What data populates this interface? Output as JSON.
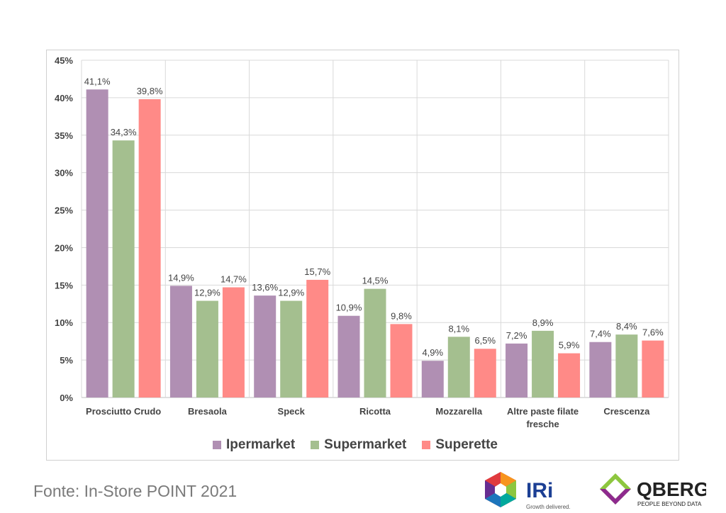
{
  "source_text": "Fonte: In-Store POINT 2021",
  "logos": {
    "iri_text": "IRi",
    "iri_tagline": "Growth delivered.",
    "qberg_text": "QBERG",
    "qberg_tagline": "PEOPLE BEYOND DATA"
  },
  "chart_data": {
    "type": "bar",
    "title": "",
    "xlabel": "",
    "ylabel": "",
    "ylim": [
      0,
      45
    ],
    "yticks": [
      "0%",
      "5%",
      "10%",
      "15%",
      "20%",
      "25%",
      "30%",
      "35%",
      "40%",
      "45%"
    ],
    "grid": true,
    "legend_position": "bottom",
    "categories": [
      [
        "Prosciutto Crudo"
      ],
      [
        "Bresaola"
      ],
      [
        "Speck"
      ],
      [
        "Ricotta"
      ],
      [
        "Mozzarella"
      ],
      [
        "Altre paste filate",
        "fresche"
      ],
      [
        "Crescenza"
      ]
    ],
    "series": [
      {
        "name": "Ipermarket",
        "color": "#b08fb3",
        "values": [
          41.1,
          14.9,
          13.6,
          10.9,
          4.9,
          7.2,
          7.4
        ],
        "labels": [
          "41,1%",
          "14,9%",
          "13,6%",
          "10,9%",
          "4,9%",
          "7,2%",
          "7,4%"
        ]
      },
      {
        "name": "Supermarket",
        "color": "#a4bf8f",
        "values": [
          34.3,
          12.9,
          12.9,
          14.5,
          8.1,
          8.9,
          8.4
        ],
        "labels": [
          "34,3%",
          "12,9%",
          "12,9%",
          "14,5%",
          "8,1%",
          "8,9%",
          "8,4%"
        ]
      },
      {
        "name": "Superette",
        "color": "#ff8a87",
        "values": [
          39.8,
          14.7,
          15.7,
          9.8,
          6.5,
          5.9,
          7.6
        ],
        "labels": [
          "39,8%",
          "14,7%",
          "15,7%",
          "9,8%",
          "6,5%",
          "5,9%",
          "7,6%"
        ]
      }
    ]
  }
}
